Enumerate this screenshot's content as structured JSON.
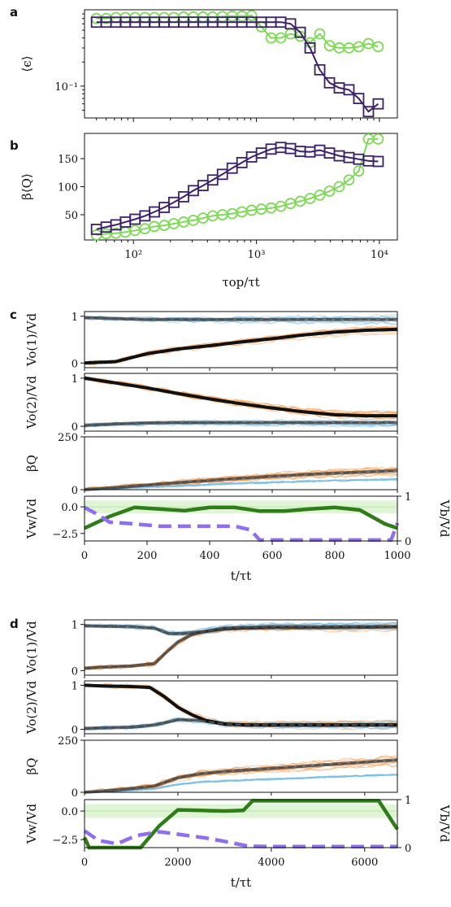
{
  "colors": {
    "green": "#7ed957",
    "purple": "#3b1f6b",
    "orange": "#f28a30",
    "blue": "#6bb5e0",
    "black": "#111111",
    "dark_green": "#2e7d18",
    "light_purple": "#8f6ef0",
    "gray_dash": "#9a9a9a",
    "light_green_band": "#dff5d6"
  },
  "chart_data": [
    {
      "panel": "a",
      "type": "line",
      "xscale": "log",
      "yscale": "log",
      "xlim": [
        40,
        14000
      ],
      "ylim": [
        0.04,
        0.9
      ],
      "ylabel": "⟨ϵ⟩",
      "ytick_labels": [
        "10⁻¹"
      ],
      "series": [
        {
          "marker": "circle",
          "color": "green",
          "x": [
            50,
            60,
            72,
            86,
            103,
            124,
            148,
            178,
            213,
            256,
            307,
            368,
            441,
            529,
            635,
            762,
            914,
            1097,
            1316,
            1579,
            1895,
            2274,
            2729,
            3275,
            3930,
            4716,
            5659,
            6791,
            8149,
            9778
          ],
          "y": [
            0.7,
            0.7,
            0.72,
            0.72,
            0.72,
            0.72,
            0.72,
            0.72,
            0.72,
            0.73,
            0.73,
            0.73,
            0.73,
            0.74,
            0.75,
            0.75,
            0.76,
            0.55,
            0.4,
            0.4,
            0.45,
            0.42,
            0.35,
            0.45,
            0.32,
            0.3,
            0.3,
            0.31,
            0.34,
            0.31
          ]
        },
        {
          "marker": "square",
          "color": "purple",
          "x": [
            50,
            60,
            72,
            86,
            103,
            124,
            148,
            178,
            213,
            256,
            307,
            368,
            441,
            529,
            635,
            762,
            914,
            1097,
            1316,
            1579,
            1895,
            2274,
            2729,
            3275,
            3930,
            4716,
            5659,
            6791,
            8149,
            9778
          ],
          "y": [
            0.63,
            0.63,
            0.63,
            0.63,
            0.63,
            0.63,
            0.63,
            0.63,
            0.63,
            0.63,
            0.63,
            0.63,
            0.63,
            0.63,
            0.63,
            0.63,
            0.63,
            0.63,
            0.63,
            0.63,
            0.6,
            0.47,
            0.3,
            0.16,
            0.11,
            0.095,
            0.09,
            0.07,
            0.048,
            0.06
          ]
        }
      ]
    },
    {
      "panel": "b",
      "type": "line",
      "xscale": "log",
      "xlim": [
        40,
        14000
      ],
      "ylim": [
        5,
        195
      ],
      "ylabel": "β⟨Q⟩",
      "xlabel": "τop/τt",
      "xtick_labels": [
        "10²",
        "10³",
        "10⁴"
      ],
      "ytick_labels": [
        "50",
        "100",
        "150"
      ],
      "series": [
        {
          "marker": "circle",
          "color": "green",
          "x": [
            50,
            60,
            72,
            86,
            103,
            124,
            148,
            178,
            213,
            256,
            307,
            368,
            441,
            529,
            635,
            762,
            914,
            1097,
            1316,
            1579,
            1895,
            2274,
            2729,
            3275,
            3930,
            4716,
            5659,
            6791,
            8149,
            9778
          ],
          "y": [
            14,
            16,
            17,
            19,
            22,
            25,
            29,
            31,
            34,
            37,
            40,
            44,
            48,
            50,
            52,
            55,
            58,
            60,
            62,
            65,
            70,
            74,
            79,
            85,
            92,
            100,
            112,
            128,
            185,
            185
          ]
        },
        {
          "marker": "square",
          "color": "purple",
          "x": [
            50,
            60,
            72,
            86,
            103,
            124,
            148,
            178,
            213,
            256,
            307,
            368,
            441,
            529,
            635,
            762,
            914,
            1097,
            1316,
            1579,
            1895,
            2274,
            2729,
            3275,
            3930,
            4716,
            5659,
            6791,
            8149,
            9778
          ],
          "y": [
            24,
            28,
            32,
            37,
            42,
            48,
            55,
            63,
            72,
            82,
            93,
            102,
            112,
            122,
            133,
            143,
            153,
            160,
            167,
            170,
            168,
            163,
            162,
            165,
            160,
            155,
            152,
            149,
            146,
            145
          ]
        }
      ]
    },
    {
      "panel": "c",
      "type": "line",
      "xlim": [
        0,
        1000
      ],
      "xlabel": "t/τt",
      "xtick_labels": [
        "0",
        "200",
        "400",
        "600",
        "800",
        "1000"
      ],
      "subplots": [
        {
          "ylabel": "Vo(1)/Vd",
          "ylim": [
            -0.1,
            1.1
          ],
          "ytick_labels": [
            "0",
            "1"
          ],
          "series": [
            {
              "name": "",
              "style": "mean",
              "color": "black",
              "x": [
                0,
                100,
                200,
                300,
                400,
                500,
                600,
                700,
                800,
                900,
                1000
              ],
              "y": [
                0,
                0.03,
                0.2,
                0.3,
                0.37,
                0.45,
                0.52,
                0.6,
                0.66,
                0.7,
                0.72
              ]
            },
            {
              "name": "",
              "style": "mean",
              "color": "black",
              "x": [
                0,
                100,
                200,
                300,
                400,
                500,
                600,
                700,
                800,
                900,
                1000
              ],
              "y": [
                0.97,
                0.95,
                0.93,
                0.93,
                0.93,
                0.93,
                0.93,
                0.93,
                0.93,
                0.93,
                0.93
              ]
            }
          ]
        },
        {
          "ylabel": "Vo(2)/Vd",
          "ylim": [
            -0.1,
            1.1
          ],
          "ytick_labels": [
            "0",
            "1"
          ],
          "series": [
            {
              "name": "",
              "style": "mean",
              "color": "black",
              "x": [
                0,
                100,
                200,
                300,
                400,
                500,
                600,
                700,
                800,
                900,
                1000
              ],
              "y": [
                1,
                0.9,
                0.8,
                0.68,
                0.57,
                0.47,
                0.38,
                0.3,
                0.24,
                0.22,
                0.22
              ]
            },
            {
              "name": "",
              "style": "mean",
              "color": "black",
              "x": [
                0,
                100,
                200,
                300,
                400,
                500,
                600,
                700,
                800,
                900,
                1000
              ],
              "y": [
                0.02,
                0.05,
                0.07,
                0.08,
                0.08,
                0.08,
                0.08,
                0.08,
                0.08,
                0.08,
                0.08
              ]
            }
          ]
        },
        {
          "ylabel": "βQ",
          "ylim": [
            0,
            250
          ],
          "ytick_labels": [
            "0",
            "250"
          ],
          "series": [
            {
              "name": "",
              "style": "mean",
              "color": "black",
              "x": [
                0,
                100,
                200,
                300,
                400,
                500,
                600,
                700,
                800,
                900,
                1000
              ],
              "y": [
                0,
                10,
                22,
                33,
                44,
                54,
                63,
                71,
                78,
                84,
                90
              ]
            }
          ]
        },
        {
          "ylabel_left": "Vw/Vd",
          "ylabel_right": "Vb/Vd",
          "ylim_left": [
            -3.2,
            1.0
          ],
          "ylim_right": [
            0,
            1
          ],
          "ytick_labels_left": [
            "0.0",
            "−2.5"
          ],
          "ytick_labels_right": [
            "0",
            "1"
          ],
          "series": [
            {
              "name": "",
              "style": "solid",
              "color": "dark_green",
              "axis": "left",
              "x": [
                0,
                80,
                160,
                240,
                320,
                400,
                480,
                560,
                640,
                720,
                800,
                880,
                960,
                1000
              ],
              "y": [
                -2.0,
                -0.9,
                -0.05,
                -0.2,
                -0.35,
                -0.05,
                -0.05,
                -0.4,
                -0.4,
                -0.2,
                -0.05,
                -0.3,
                -1.6,
                -2.0
              ]
            },
            {
              "name": "",
              "style": "dashed",
              "color": "light_purple",
              "axis": "right",
              "x": [
                0,
                40,
                80,
                160,
                240,
                320,
                400,
                480,
                530,
                560,
                600,
                700,
                800,
                900,
                980,
                1000
              ],
              "y": [
                0.75,
                0.6,
                0.42,
                0.38,
                0.33,
                0.33,
                0.33,
                0.33,
                0.25,
                0.02,
                0.02,
                0.02,
                0.02,
                0.02,
                0.02,
                0.4
              ]
            }
          ]
        }
      ]
    },
    {
      "panel": "d",
      "type": "line",
      "xlim": [
        0,
        6700
      ],
      "xlabel": "t/τt",
      "xtick_labels": [
        "0",
        "2000",
        "4000",
        "6000"
      ],
      "subplots": [
        {
          "ylabel": "Vo(1)/Vd",
          "ylim": [
            -0.1,
            1.1
          ],
          "ytick_labels": [
            "0",
            "1"
          ],
          "series": [
            {
              "name": "",
              "style": "mean",
              "color": "black",
              "x": [
                0,
                500,
                1000,
                1500,
                1700,
                2000,
                2300,
                2600,
                3000,
                3500,
                4000,
                5000,
                6000,
                6700
              ],
              "y": [
                0.05,
                0.08,
                0.1,
                0.15,
                0.35,
                0.62,
                0.78,
                0.85,
                0.9,
                0.92,
                0.93,
                0.93,
                0.94,
                0.95
              ]
            },
            {
              "name": "",
              "style": "mean",
              "color": "black",
              "x": [
                0,
                1000,
                1500,
                1800,
                2100,
                2600,
                3000,
                4000,
                6700
              ],
              "y": [
                0.97,
                0.95,
                0.92,
                0.8,
                0.8,
                0.85,
                0.92,
                0.95,
                0.95
              ]
            }
          ]
        },
        {
          "ylabel": "Vo(2)/Vd",
          "ylim": [
            -0.1,
            1.1
          ],
          "ytick_labels": [
            "0",
            "1"
          ],
          "series": [
            {
              "name": "",
              "style": "mean",
              "color": "black",
              "x": [
                0,
                500,
                1000,
                1400,
                1700,
                2000,
                2300,
                2600,
                3000,
                3500,
                4000,
                6700
              ],
              "y": [
                1,
                0.98,
                0.97,
                0.95,
                0.75,
                0.5,
                0.33,
                0.2,
                0.12,
                0.1,
                0.1,
                0.1
              ]
            },
            {
              "name": "",
              "style": "mean",
              "color": "black",
              "x": [
                0,
                1000,
                1500,
                2000,
                2500,
                3000,
                3500,
                6700
              ],
              "y": [
                0.02,
                0.05,
                0.1,
                0.22,
                0.2,
                0.12,
                0.1,
                0.1
              ]
            }
          ]
        },
        {
          "ylabel": "βQ",
          "ylim": [
            0,
            250
          ],
          "ytick_labels": [
            "0",
            "250"
          ],
          "series": [
            {
              "name": "",
              "style": "mean",
              "color": "black",
              "x": [
                0,
                500,
                1000,
                1500,
                2000,
                2500,
                3000,
                4000,
                5000,
                6000,
                6700
              ],
              "y": [
                0,
                8,
                18,
                30,
                70,
                90,
                100,
                115,
                130,
                145,
                155
              ]
            }
          ]
        },
        {
          "ylabel_left": "Vw/Vd",
          "ylabel_right": "Vb/Vd",
          "ylim_left": [
            -3.2,
            1.0
          ],
          "ylim_right": [
            0,
            1
          ],
          "ytick_labels_left": [
            "0.0",
            "−2.5"
          ],
          "ytick_labels_right": [
            "0",
            "1"
          ],
          "series": [
            {
              "name": "",
              "style": "solid",
              "color": "dark_green",
              "axis": "left",
              "x": [
                0,
                100,
                1000,
                1200,
                1600,
                2000,
                2500,
                3000,
                3400,
                3600,
                4000,
                5000,
                6000,
                6300,
                6700
              ],
              "y": [
                -2.3,
                -3.2,
                -3.2,
                -3.2,
                -1.3,
                0.1,
                0.05,
                0.0,
                0.05,
                0.9,
                0.9,
                0.9,
                0.9,
                0.9,
                -1.6
              ]
            },
            {
              "name": "",
              "style": "dashed",
              "color": "light_purple",
              "axis": "right",
              "x": [
                0,
                300,
                700,
                1100,
                1600,
                2000,
                2600,
                3000,
                3500,
                4000,
                5000,
                6000,
                6700
              ],
              "y": [
                0.35,
                0.15,
                0.08,
                0.25,
                0.33,
                0.28,
                0.2,
                0.13,
                0.03,
                0.02,
                0.02,
                0.02,
                0.02
              ]
            }
          ]
        }
      ]
    }
  ]
}
